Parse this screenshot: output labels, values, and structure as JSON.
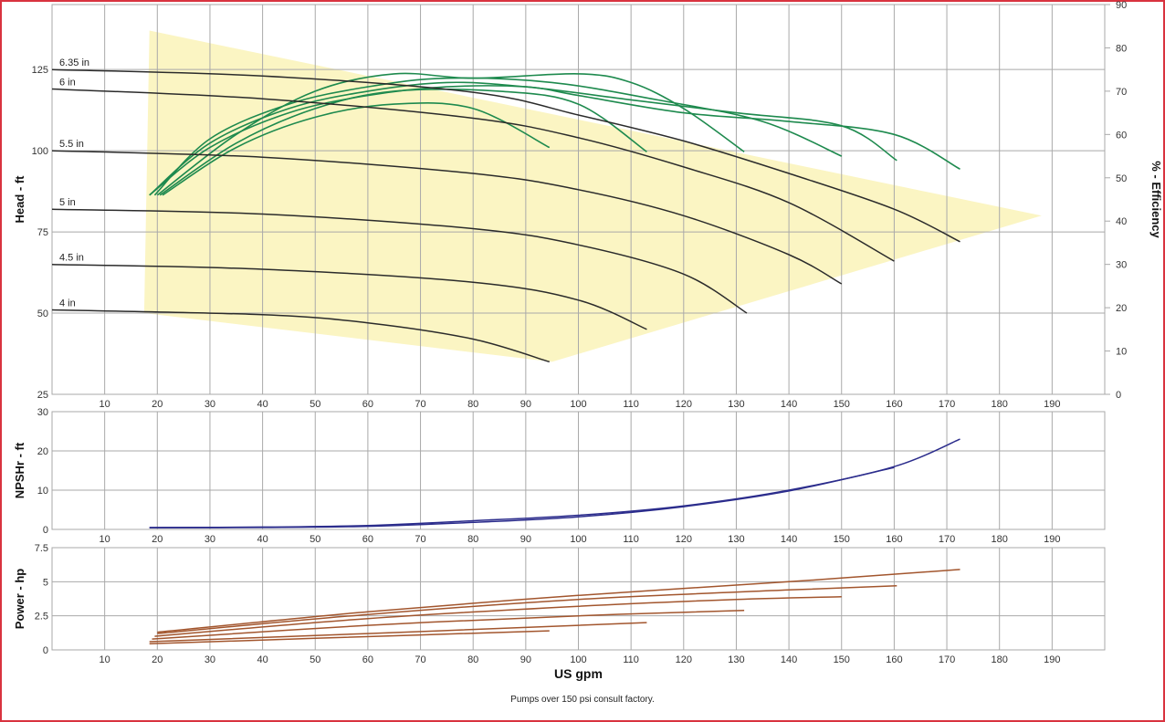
{
  "colors": {
    "border": "#d9333f",
    "grid": "#a9a9a9",
    "envelope": "#fbf5c3",
    "head_curves": "#2b2b2b",
    "efficiency_curves": "#1e8a4e",
    "npshr_curve": "#2b2c8c",
    "power_curves": "#a2552d"
  },
  "footer_note": "Pumps over 150 psi consult factory.",
  "chart_data": [
    {
      "id": "head",
      "type": "line",
      "ylabel": "Head - ft",
      "y2label": "% - Efficiency",
      "xlim": [
        0,
        200
      ],
      "ylim": [
        25,
        145
      ],
      "y2lim": [
        0,
        90
      ],
      "grid": true,
      "x_ticks": [
        10,
        20,
        30,
        40,
        50,
        60,
        70,
        80,
        90,
        100,
        110,
        120,
        130,
        140,
        150,
        160,
        170,
        180,
        190
      ],
      "y_ticks": [
        {
          "value": 25,
          "label": "25"
        },
        {
          "value": 50,
          "label": "50"
        },
        {
          "value": 75,
          "label": "75"
        },
        {
          "value": 100,
          "label": "100"
        },
        {
          "value": 125,
          "label": "125"
        }
      ],
      "y2_ticks": [
        0,
        10,
        20,
        30,
        40,
        50,
        60,
        70,
        80,
        90
      ],
      "envelope": [
        [
          18.5,
          137
        ],
        [
          188,
          80
        ],
        [
          95,
          35
        ],
        [
          17.5,
          50
        ]
      ],
      "head_series": [
        {
          "name": "6.35 in",
          "values": [
            [
              0,
              125
            ],
            [
              40,
              123
            ],
            [
              80,
              118
            ],
            [
              100,
              111
            ],
            [
              120,
              103
            ],
            [
              140,
              93
            ],
            [
              160,
              82
            ],
            [
              172.5,
              72
            ]
          ]
        },
        {
          "name": "6 in",
          "values": [
            [
              0,
              119
            ],
            [
              40,
              116
            ],
            [
              80,
              110
            ],
            [
              100,
              104
            ],
            [
              120,
              95
            ],
            [
              140,
              84
            ],
            [
              160,
              66
            ]
          ]
        },
        {
          "name": "5.5 in",
          "values": [
            [
              0,
              100
            ],
            [
              40,
              98
            ],
            [
              80,
              93
            ],
            [
              100,
              88
            ],
            [
              120,
              80
            ],
            [
              140,
              68
            ],
            [
              150,
              59
            ]
          ]
        },
        {
          "name": "5 in",
          "values": [
            [
              0,
              82
            ],
            [
              40,
              80.5
            ],
            [
              80,
              76
            ],
            [
              100,
              71
            ],
            [
              120,
              62
            ],
            [
              132,
              50
            ]
          ]
        },
        {
          "name": "4.5 in",
          "values": [
            [
              0,
              65
            ],
            [
              40,
              63.5
            ],
            [
              80,
              59.5
            ],
            [
              100,
              54
            ],
            [
              113,
              45
            ]
          ]
        },
        {
          "name": "4 in",
          "values": [
            [
              0,
              51
            ],
            [
              40,
              49.5
            ],
            [
              60,
              47
            ],
            [
              80,
              42
            ],
            [
              94.5,
              35
            ]
          ]
        }
      ],
      "efficiency_series": [
        {
          "values": [
            [
              18.5,
              46
            ],
            [
              30,
              57
            ],
            [
              45,
              65
            ],
            [
              60,
              69
            ],
            [
              75,
              71
            ],
            [
              90,
              71
            ],
            [
              100,
              69
            ],
            [
              120,
              65
            ],
            [
              140,
              63
            ],
            [
              160,
              60
            ],
            [
              172.5,
              52
            ]
          ]
        },
        {
          "values": [
            [
              18.5,
              46
            ],
            [
              30,
              58
            ],
            [
              45,
              66
            ],
            [
              60,
              70
            ],
            [
              75,
              72
            ],
            [
              90,
              71
            ],
            [
              110,
              68
            ],
            [
              130,
              65
            ],
            [
              150,
              62
            ],
            [
              160.5,
              54
            ]
          ]
        },
        {
          "values": [
            [
              19.5,
              46
            ],
            [
              30,
              59
            ],
            [
              45,
              67
            ],
            [
              60,
              71
            ],
            [
              75,
              73
            ],
            [
              95,
              72
            ],
            [
              115,
              68
            ],
            [
              135,
              63
            ],
            [
              150,
              55
            ]
          ]
        },
        {
          "values": [
            [
              20,
              46
            ],
            [
              35,
              60
            ],
            [
              50,
              70
            ],
            [
              65,
              74
            ],
            [
              80,
              73
            ],
            [
              100,
              74
            ],
            [
              110,
              72
            ],
            [
              120,
              66
            ],
            [
              131.5,
              56
            ]
          ]
        },
        {
          "values": [
            [
              20.5,
              46
            ],
            [
              35,
              58
            ],
            [
              50,
              66
            ],
            [
              65,
              70
            ],
            [
              85,
              70
            ],
            [
              100,
              67
            ],
            [
              113,
              56
            ]
          ]
        },
        {
          "values": [
            [
              21,
              46
            ],
            [
              35,
              57
            ],
            [
              50,
              64
            ],
            [
              65,
              67
            ],
            [
              80,
              66
            ],
            [
              94.5,
              57
            ]
          ]
        }
      ],
      "curve_labels_shown": true
    },
    {
      "id": "npshr",
      "type": "line",
      "ylabel": "NPSHr - ft",
      "xlim": [
        0,
        200
      ],
      "ylim": [
        0,
        30
      ],
      "grid": true,
      "x_ticks": [
        10,
        20,
        30,
        40,
        50,
        60,
        70,
        80,
        90,
        100,
        110,
        120,
        130,
        140,
        150,
        160,
        170,
        180,
        190
      ],
      "y_ticks": [
        0,
        10,
        20,
        30
      ],
      "series": [
        {
          "values": [
            [
              18.5,
              0.5
            ],
            [
              40,
              0.6
            ],
            [
              60,
              1.0
            ],
            [
              80,
              2.2
            ],
            [
              100,
              3.6
            ],
            [
              120,
              6.0
            ],
            [
              140,
              10.0
            ],
            [
              160,
              16.0
            ],
            [
              172.5,
              23.0
            ]
          ]
        },
        {
          "values": [
            [
              18.5,
              0.4
            ],
            [
              40,
              0.5
            ],
            [
              60,
              0.8
            ],
            [
              80,
              1.8
            ],
            [
              100,
              3.2
            ],
            [
              120,
              5.8
            ],
            [
              140,
              9.8
            ],
            [
              160,
              15.8
            ]
          ]
        }
      ]
    },
    {
      "id": "power",
      "type": "line",
      "ylabel": "Power - hp",
      "xlabel": "US gpm",
      "xlim": [
        0,
        200
      ],
      "ylim": [
        0,
        7.5
      ],
      "grid": true,
      "x_ticks": [
        10,
        20,
        30,
        40,
        50,
        60,
        70,
        80,
        90,
        100,
        110,
        120,
        130,
        140,
        150,
        160,
        170,
        180,
        190
      ],
      "y_ticks": [
        {
          "value": 0,
          "label": "0"
        },
        {
          "value": 2.5,
          "label": "2.5"
        },
        {
          "value": 5,
          "label": "5"
        },
        {
          "value": 7.5,
          "label": "7.5"
        }
      ],
      "series": [
        {
          "values": [
            [
              20,
              1.3
            ],
            [
              60,
              2.8
            ],
            [
              100,
              4.0
            ],
            [
              140,
              5.0
            ],
            [
              172.5,
              5.9
            ]
          ]
        },
        {
          "values": [
            [
              20,
              1.2
            ],
            [
              60,
              2.6
            ],
            [
              100,
              3.7
            ],
            [
              140,
              4.4
            ],
            [
              160.5,
              4.7
            ]
          ]
        },
        {
          "values": [
            [
              19.5,
              1.0
            ],
            [
              60,
              2.3
            ],
            [
              100,
              3.2
            ],
            [
              130,
              3.7
            ],
            [
              150,
              3.9
            ]
          ]
        },
        {
          "values": [
            [
              19,
              0.8
            ],
            [
              60,
              1.8
            ],
            [
              100,
              2.5
            ],
            [
              131.5,
              2.9
            ]
          ]
        },
        {
          "values": [
            [
              18.5,
              0.6
            ],
            [
              60,
              1.2
            ],
            [
              100,
              1.8
            ],
            [
              113,
              2.0
            ]
          ]
        },
        {
          "values": [
            [
              18.5,
              0.45
            ],
            [
              50,
              0.85
            ],
            [
              94.5,
              1.4
            ]
          ]
        }
      ]
    }
  ]
}
